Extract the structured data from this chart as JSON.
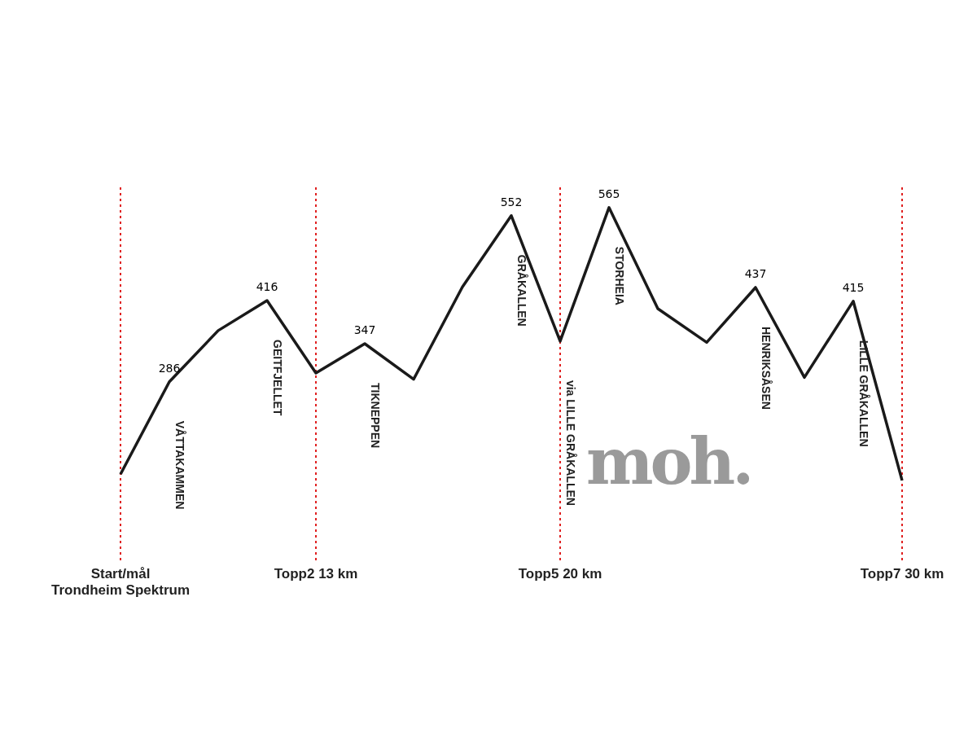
{
  "chart_data": {
    "type": "line",
    "ylabel": "moh.",
    "categories": [
      "Start/mål\nTrondheim Spektrum",
      null,
      null,
      null,
      "Topp2 13 km",
      null,
      null,
      null,
      null,
      "Topp5 20 km",
      null,
      null,
      null,
      null,
      null,
      null,
      "Topp7 30 km"
    ],
    "series": [
      {
        "color": "#1a1a1a",
        "values": [
          138,
          286,
          368,
          416,
          300,
          347,
          290,
          438,
          552,
          351,
          565,
          403,
          349,
          437,
          293,
          415,
          128
        ],
        "value_labels": [
          null,
          "286",
          null,
          "416",
          null,
          "347",
          null,
          null,
          "552",
          null,
          "565",
          null,
          null,
          "437",
          null,
          "415",
          null
        ]
      }
    ],
    "annotations": [
      "VÅTTAKAMMEN",
      "GEITFJELLET",
      "TIKNEPPEN",
      "GRÅKALLEN",
      "via LILLE GRÅKALLEN",
      "STORHEIA",
      "HENRIKSÅSEN",
      "LILLE GRÅKALLEN"
    ],
    "ref_lines": [
      {
        "axis": "x",
        "value": "Start/mål\nTrondheim Spektrum",
        "color": "#e02020",
        "line_style": "dotted"
      },
      {
        "axis": "x",
        "value": "Topp2 13 km",
        "color": "#e02020",
        "line_style": "dotted"
      },
      {
        "axis": "x",
        "value": "Topp5 20 km",
        "color": "#e02020",
        "line_style": "dotted"
      },
      {
        "axis": "x",
        "value": "Topp7 30 km",
        "color": "#e02020",
        "line_style": "dotted"
      }
    ],
    "grid": false,
    "legend": false,
    "marker": "none",
    "line_style": "solid"
  }
}
